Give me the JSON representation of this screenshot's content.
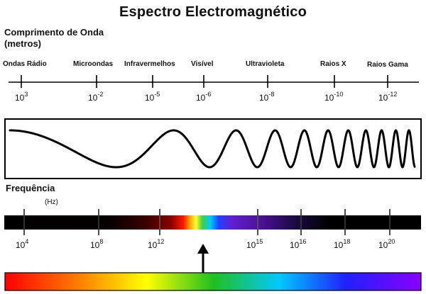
{
  "title": "Espectro Electromagnético",
  "wavelength": {
    "heading_line1": "Comprimento de Onda",
    "heading_line2": "(metros)",
    "bands": [
      "Ondas Rádio",
      "Microondas",
      "Infravermelhos",
      "Visível",
      "Ultravioleta",
      "Raios X",
      "Raios Gama"
    ],
    "ticks": [
      {
        "base": "10",
        "exp": "3"
      },
      {
        "base": "10",
        "exp": "-2"
      },
      {
        "base": "10",
        "exp": "-5"
      },
      {
        "base": "10",
        "exp": "-6"
      },
      {
        "base": "10",
        "exp": "-8"
      },
      {
        "base": "10",
        "exp": "-10"
      },
      {
        "base": "10",
        "exp": "-12"
      }
    ]
  },
  "frequency": {
    "heading": "Frequência",
    "unit": "(Hz)",
    "ticks": [
      {
        "base": "10",
        "exp": "4"
      },
      {
        "base": "10",
        "exp": "8"
      },
      {
        "base": "10",
        "exp": "12"
      },
      {
        "base": "10",
        "exp": "15"
      },
      {
        "base": "10",
        "exp": "16"
      },
      {
        "base": "10",
        "exp": "18"
      },
      {
        "base": "10",
        "exp": "20"
      }
    ]
  },
  "colors": {
    "text": "#111111",
    "wave_line": "#000000",
    "bar_background": "#000000",
    "spectrum": [
      "#ff0000",
      "#ff7f00",
      "#ffff00",
      "#00c000",
      "#00c0ff",
      "#0000ff",
      "#8b00ff"
    ]
  }
}
